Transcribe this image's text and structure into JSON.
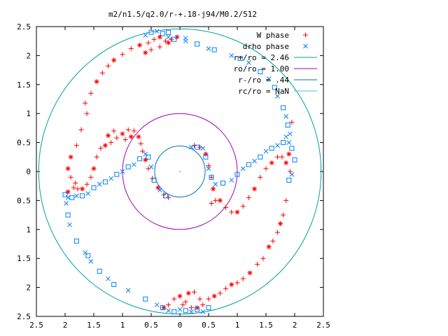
{
  "chart_data": {
    "type": "scatter",
    "title": "m2/n1.5/q2.0/r-+.18-j94/M0.2/512",
    "xlabel": "",
    "ylabel": "",
    "xlim": [
      -2.5,
      2.5
    ],
    "ylim": [
      -2.5,
      2.5
    ],
    "x_tick_values": [
      -2.5,
      -2,
      -1.5,
      -1,
      -0.5,
      0,
      0.5,
      1,
      1.5,
      2,
      2.5
    ],
    "x_tick_labels": [
      "2.5",
      "2",
      "1.5",
      "1",
      "0.5",
      "0",
      "0.5",
      "1",
      "1.5",
      "2",
      "2.5"
    ],
    "y_tick_values": [
      2.5,
      2,
      1.5,
      1,
      0.5,
      0,
      -0.5,
      -1,
      -1.5,
      -2,
      -2.5
    ],
    "y_tick_labels": [
      "2.5",
      "2",
      "1.5",
      "1",
      "0.5",
      "0",
      "0.5",
      "1",
      "1.5",
      "2",
      "2.5"
    ],
    "legend_position": "top-right",
    "grid": false,
    "legend": [
      {
        "label": "W phase",
        "marker": "plus",
        "color": "#ff0000"
      },
      {
        "label": "drho phase",
        "marker": "cross",
        "color": "#0080ff"
      },
      {
        "label": "r+/ro = 2.46",
        "marker": "line",
        "color": "#00a0a0"
      },
      {
        "label": "ro/ro = 1.00",
        "marker": "line",
        "color": "#a000c0"
      },
      {
        "label": "r-/ro = .44",
        "marker": "line",
        "color": "#0070c0"
      },
      {
        "label": "rc/ro = NaN",
        "marker": "line",
        "color": "#40c0e0"
      }
    ],
    "circles": [
      {
        "name": "r+",
        "radius": 2.46,
        "color": "#00a0a0"
      },
      {
        "name": "ro",
        "radius": 1.0,
        "color": "#a000c0"
      },
      {
        "name": "r-",
        "radius": 0.44,
        "color": "#0070c0"
      }
    ],
    "series": [
      {
        "name": "W phase",
        "color": "#ff0000",
        "points": [
          [
            -1.95,
            -0.35
          ],
          [
            -1.85,
            -0.28
          ],
          [
            -1.78,
            -0.3
          ],
          [
            -1.7,
            -0.3
          ],
          [
            -1.62,
            -0.22
          ],
          [
            -1.55,
            -0.1
          ],
          [
            -1.5,
            0.05
          ],
          [
            -1.45,
            0.25
          ],
          [
            -1.38,
            0.4
          ],
          [
            -1.3,
            0.45
          ],
          [
            -1.2,
            0.5
          ],
          [
            -1.1,
            0.58
          ],
          [
            -1.0,
            0.65
          ],
          [
            -0.9,
            0.72
          ],
          [
            -0.8,
            0.7
          ],
          [
            -0.72,
            0.6
          ],
          [
            -0.68,
            0.48
          ],
          [
            -0.65,
            0.35
          ],
          [
            -0.6,
            0.2
          ],
          [
            -0.55,
            0.05
          ],
          [
            -0.48,
            -0.12
          ],
          [
            -0.38,
            -0.28
          ],
          [
            -0.28,
            -0.4
          ],
          [
            -0.2,
            -0.45
          ],
          [
            -1.95,
            0.05
          ],
          [
            -1.9,
            -0.1
          ],
          [
            -1.82,
            -0.2
          ],
          [
            -1.25,
            0.62
          ],
          [
            -1.15,
            0.7
          ],
          [
            -0.95,
            0.55
          ],
          [
            -0.85,
            0.6
          ],
          [
            0.25,
            0.45
          ],
          [
            0.35,
            0.42
          ],
          [
            0.45,
            0.3
          ],
          [
            0.5,
            0.1
          ],
          [
            0.55,
            -0.1
          ],
          [
            0.58,
            -0.3
          ],
          [
            0.55,
            -0.55
          ],
          [
            0.62,
            -0.5
          ],
          [
            0.7,
            -0.5
          ],
          [
            0.8,
            -0.62
          ],
          [
            0.9,
            -0.7
          ],
          [
            1.0,
            -0.7
          ],
          [
            1.1,
            -0.6
          ],
          [
            1.2,
            -0.45
          ],
          [
            1.3,
            -0.3
          ],
          [
            1.4,
            -0.1
          ],
          [
            1.5,
            0.05
          ],
          [
            1.6,
            0.15
          ],
          [
            1.7,
            0.25
          ],
          [
            1.78,
            0.25
          ],
          [
            1.85,
            0.15
          ],
          [
            1.92,
            0.0
          ],
          [
            1.95,
            0.85
          ],
          [
            1.9,
            0.3
          ],
          [
            1.85,
            -0.5
          ],
          [
            1.8,
            -0.75
          ],
          [
            1.75,
            -0.9
          ],
          [
            1.7,
            -1.05
          ],
          [
            1.62,
            -1.2
          ],
          [
            1.55,
            -1.3
          ],
          [
            1.45,
            -1.5
          ],
          [
            1.35,
            -1.6
          ],
          [
            1.22,
            -1.75
          ],
          [
            1.1,
            -1.85
          ],
          [
            1.0,
            -1.92
          ],
          [
            0.9,
            -1.95
          ],
          [
            0.8,
            -2.02
          ],
          [
            0.7,
            -2.1
          ],
          [
            0.6,
            -2.15
          ],
          [
            0.5,
            -2.2
          ],
          [
            0.4,
            -2.3
          ],
          [
            0.3,
            -2.35
          ],
          [
            0.2,
            -2.35
          ],
          [
            0.1,
            -2.25
          ],
          [
            0.0,
            -2.15
          ],
          [
            -0.1,
            -2.2
          ],
          [
            -0.2,
            -2.3
          ],
          [
            -0.28,
            -2.35
          ],
          [
            0.35,
            -2.2
          ],
          [
            0.25,
            -2.08
          ],
          [
            0.15,
            -2.1
          ],
          [
            0.05,
            -2.3
          ],
          [
            -1.55,
            1.35
          ],
          [
            -1.45,
            1.55
          ],
          [
            -1.35,
            1.7
          ],
          [
            -1.25,
            1.82
          ],
          [
            -1.15,
            1.92
          ],
          [
            -1.0,
            2.02
          ],
          [
            -0.85,
            2.12
          ],
          [
            -0.7,
            2.18
          ],
          [
            -0.55,
            2.22
          ],
          [
            -0.45,
            2.28
          ],
          [
            -0.35,
            2.32
          ],
          [
            -0.25,
            2.25
          ],
          [
            -0.15,
            2.28
          ],
          [
            -0.05,
            2.32
          ],
          [
            -1.72,
            0.72
          ],
          [
            -1.8,
            0.45
          ],
          [
            -1.9,
            0.25
          ],
          [
            -1.62,
            1.0
          ],
          [
            -1.65,
            1.18
          ],
          [
            -0.6,
            2.05
          ],
          [
            -0.5,
            2.1
          ],
          [
            -0.35,
            2.15
          ],
          [
            -0.2,
            2.22
          ]
        ]
      },
      {
        "name": "drho phase",
        "color": "#0080ff",
        "points": [
          [
            -2.0,
            -0.4
          ],
          [
            -1.95,
            -0.45
          ],
          [
            -1.88,
            -0.45
          ],
          [
            -1.8,
            -0.42
          ],
          [
            -1.7,
            -0.42
          ],
          [
            -1.6,
            -0.38
          ],
          [
            -1.5,
            -0.28
          ],
          [
            -1.4,
            -0.22
          ],
          [
            -1.3,
            -0.18
          ],
          [
            -1.2,
            -0.12
          ],
          [
            -1.1,
            -0.05
          ],
          [
            -1.0,
            0.0
          ],
          [
            -0.9,
            0.08
          ],
          [
            -0.8,
            0.12
          ],
          [
            -0.7,
            0.22
          ],
          [
            -0.6,
            0.3
          ],
          [
            -0.55,
            0.25
          ],
          [
            -0.5,
            0.08
          ],
          [
            -0.45,
            -0.15
          ],
          [
            -0.35,
            -0.32
          ],
          [
            -0.25,
            -0.42
          ],
          [
            -1.98,
            -0.55
          ],
          [
            -1.95,
            -0.75
          ],
          [
            -1.92,
            -0.92
          ],
          [
            -1.8,
            -1.2
          ],
          [
            -1.65,
            -1.4
          ],
          [
            -1.6,
            -1.45
          ],
          [
            -1.55,
            -1.55
          ],
          [
            -1.4,
            -1.72
          ],
          [
            -1.25,
            -1.85
          ],
          [
            -1.15,
            -1.95
          ],
          [
            -0.9,
            -2.05
          ],
          [
            -0.6,
            -2.2
          ],
          [
            -0.4,
            -2.3
          ],
          [
            -0.3,
            -2.35
          ],
          [
            -0.2,
            -2.4
          ],
          [
            -0.1,
            -2.42
          ],
          [
            0.0,
            -2.38
          ],
          [
            0.1,
            -2.4
          ],
          [
            0.2,
            -2.42
          ],
          [
            0.3,
            -2.38
          ],
          [
            0.4,
            -2.42
          ],
          [
            0.5,
            -2.35
          ],
          [
            0.2,
            0.42
          ],
          [
            0.3,
            0.42
          ],
          [
            0.4,
            0.4
          ],
          [
            0.45,
            0.25
          ],
          [
            0.5,
            0.05
          ],
          [
            0.55,
            -0.1
          ],
          [
            0.62,
            -0.22
          ],
          [
            0.75,
            -0.2
          ],
          [
            0.9,
            -0.15
          ],
          [
            1.0,
            -0.05
          ],
          [
            1.1,
            0.05
          ],
          [
            1.2,
            0.12
          ],
          [
            1.3,
            0.18
          ],
          [
            1.4,
            0.25
          ],
          [
            1.5,
            0.35
          ],
          [
            1.6,
            0.4
          ],
          [
            1.7,
            0.45
          ],
          [
            1.8,
            0.5
          ],
          [
            1.9,
            0.5
          ],
          [
            1.95,
            0.4
          ],
          [
            1.92,
            0.65
          ],
          [
            1.88,
            0.8
          ],
          [
            1.85,
            0.95
          ],
          [
            1.8,
            1.1
          ],
          [
            1.7,
            1.3
          ],
          [
            1.65,
            1.45
          ],
          [
            1.55,
            1.6
          ],
          [
            1.4,
            1.72
          ],
          [
            1.2,
            1.88
          ],
          [
            1.05,
            1.95
          ],
          [
            0.9,
            2.0
          ],
          [
            0.6,
            2.1
          ],
          [
            0.5,
            2.12
          ],
          [
            0.3,
            2.2
          ],
          [
            0.1,
            2.25
          ],
          [
            -0.1,
            2.28
          ],
          [
            -0.2,
            2.32
          ],
          [
            -0.3,
            2.38
          ],
          [
            -0.4,
            2.42
          ],
          [
            -0.5,
            2.4
          ],
          [
            -0.6,
            2.35
          ],
          [
            -0.2,
            2.4
          ],
          [
            0.1,
            2.3
          ],
          [
            1.9,
            -0.15
          ],
          [
            1.95,
            -0.05
          ],
          [
            2.0,
            0.2
          ],
          [
            1.85,
            0.6
          ]
        ]
      }
    ]
  }
}
